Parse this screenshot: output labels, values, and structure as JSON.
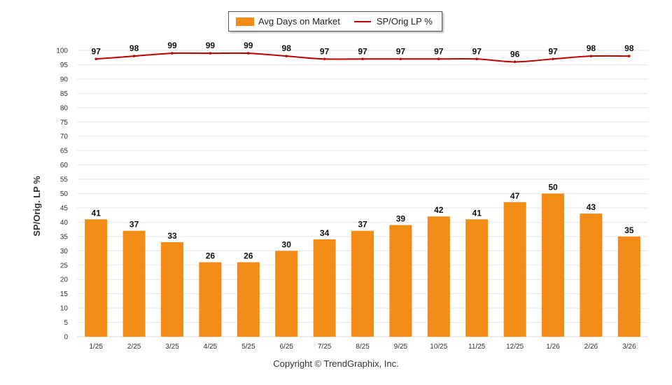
{
  "legend": {
    "bar_label": "Avg Days on Market",
    "line_label": "SP/Orig LP %"
  },
  "copyright": "Copyright © TrendGraphix, Inc.",
  "colors": {
    "bar": "#F28C16",
    "line": "#C00000",
    "grid": "#E6E6E6"
  },
  "chart_data": {
    "type": "bar",
    "ylabel": "SP/Orig. LP %",
    "ylim": [
      0,
      100
    ],
    "yticks": [
      0,
      5,
      10,
      15,
      20,
      25,
      30,
      35,
      40,
      45,
      50,
      55,
      60,
      65,
      70,
      75,
      80,
      85,
      90,
      95,
      100
    ],
    "grid": true,
    "legend_position": "top-center",
    "categories": [
      "1/25",
      "2/25",
      "3/25",
      "4/25",
      "5/25",
      "6/25",
      "7/25",
      "8/25",
      "9/25",
      "10/25",
      "11/25",
      "12/25",
      "1/26",
      "2/26",
      "3/26"
    ],
    "series": [
      {
        "name": "Avg Days on Market",
        "type": "bar",
        "values": [
          41,
          37,
          33,
          26,
          26,
          30,
          34,
          37,
          39,
          42,
          41,
          47,
          50,
          43,
          35
        ]
      },
      {
        "name": "SP/Orig LP %",
        "type": "line",
        "values": [
          97,
          98,
          99,
          99,
          99,
          98,
          97,
          97,
          97,
          97,
          97,
          96,
          97,
          98,
          98
        ]
      }
    ]
  }
}
